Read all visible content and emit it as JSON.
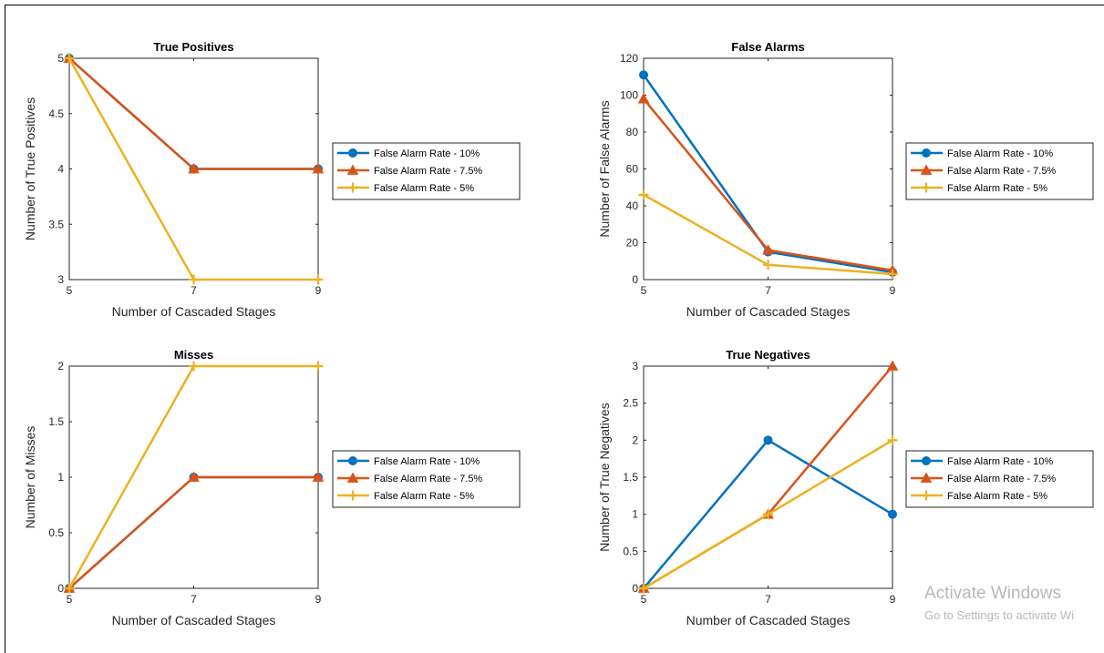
{
  "chart_data": [
    {
      "type": "line",
      "title": "True Positives",
      "xlabel": "Number of Cascaded Stages",
      "ylabel": "Number of True Positives",
      "x": [
        5,
        7,
        9
      ],
      "xlim": [
        5,
        9
      ],
      "ylim": [
        3,
        5
      ],
      "xticks": [
        5,
        7,
        9
      ],
      "yticks": [
        3,
        3.5,
        4,
        4.5,
        5
      ],
      "grid": false,
      "legend_position": "outside-right",
      "series": [
        {
          "name": "False Alarm Rate - 10%",
          "values": [
            5,
            4,
            4
          ],
          "color": "#0072BD",
          "marker": "circle"
        },
        {
          "name": "False Alarm Rate - 7.5%",
          "values": [
            5,
            4,
            4
          ],
          "color": "#D95319",
          "marker": "triangle"
        },
        {
          "name": "False Alarm Rate - 5%",
          "values": [
            5,
            3,
            3
          ],
          "color": "#EDB120",
          "marker": "plus"
        }
      ]
    },
    {
      "type": "line",
      "title": "False Alarms",
      "xlabel": "Number of Cascaded Stages",
      "ylabel": "Number of False Alarms",
      "x": [
        5,
        7,
        9
      ],
      "xlim": [
        5,
        9
      ],
      "ylim": [
        0,
        120
      ],
      "xticks": [
        5,
        7,
        9
      ],
      "yticks": [
        0,
        20,
        40,
        60,
        80,
        100,
        120
      ],
      "grid": false,
      "legend_position": "outside-right",
      "series": [
        {
          "name": "False Alarm Rate - 10%",
          "values": [
            111,
            15,
            4
          ],
          "color": "#0072BD",
          "marker": "circle"
        },
        {
          "name": "False Alarm Rate - 7.5%",
          "values": [
            98,
            16,
            5
          ],
          "color": "#D95319",
          "marker": "triangle"
        },
        {
          "name": "False Alarm Rate - 5%",
          "values": [
            46,
            8,
            3
          ],
          "color": "#EDB120",
          "marker": "plus"
        }
      ]
    },
    {
      "type": "line",
      "title": "Misses",
      "xlabel": "Number of Cascaded Stages",
      "ylabel": "Number of Misses",
      "x": [
        5,
        7,
        9
      ],
      "xlim": [
        5,
        9
      ],
      "ylim": [
        0,
        2
      ],
      "xticks": [
        5,
        7,
        9
      ],
      "yticks": [
        0,
        0.5,
        1,
        1.5,
        2
      ],
      "grid": false,
      "legend_position": "outside-right",
      "series": [
        {
          "name": "False Alarm Rate - 10%",
          "values": [
            0,
            1,
            1
          ],
          "color": "#0072BD",
          "marker": "circle"
        },
        {
          "name": "False Alarm Rate - 7.5%",
          "values": [
            0,
            1,
            1
          ],
          "color": "#D95319",
          "marker": "triangle"
        },
        {
          "name": "False Alarm Rate - 5%",
          "values": [
            0,
            2,
            2
          ],
          "color": "#EDB120",
          "marker": "plus"
        }
      ]
    },
    {
      "type": "line",
      "title": "True Negatives",
      "xlabel": "Number of Cascaded Stages",
      "ylabel": "Number of True Negatives",
      "x": [
        5,
        7,
        9
      ],
      "xlim": [
        5,
        9
      ],
      "ylim": [
        0,
        3
      ],
      "xticks": [
        5,
        7,
        9
      ],
      "yticks": [
        0,
        0.5,
        1,
        1.5,
        2,
        2.5,
        3
      ],
      "grid": false,
      "legend_position": "outside-right",
      "series": [
        {
          "name": "False Alarm Rate - 10%",
          "values": [
            0,
            2,
            1
          ],
          "color": "#0072BD",
          "marker": "circle"
        },
        {
          "name": "False Alarm Rate - 7.5%",
          "values": [
            0,
            1,
            3
          ],
          "color": "#D95319",
          "marker": "triangle"
        },
        {
          "name": "False Alarm Rate - 5%",
          "values": [
            0,
            1,
            2
          ],
          "color": "#EDB120",
          "marker": "plus"
        }
      ]
    }
  ],
  "watermark": {
    "line1": "Activate Windows",
    "line2": "Go to Settings to activate Wi"
  }
}
